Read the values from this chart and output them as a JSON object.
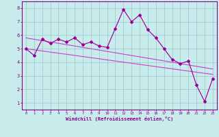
{
  "x": [
    0,
    1,
    2,
    3,
    4,
    5,
    6,
    7,
    8,
    9,
    10,
    11,
    12,
    13,
    14,
    15,
    16,
    17,
    18,
    19,
    20,
    21,
    22,
    23
  ],
  "y_main": [
    5.0,
    4.5,
    5.7,
    5.4,
    5.7,
    5.5,
    5.8,
    5.3,
    5.5,
    5.2,
    5.1,
    6.5,
    7.9,
    7.0,
    7.5,
    6.4,
    5.8,
    5.0,
    4.2,
    3.9,
    4.1,
    2.3,
    1.1,
    2.8
  ],
  "trend1_start": 5.0,
  "trend1_end": 3.1,
  "trend2_start": 5.8,
  "trend2_end": 3.5,
  "line_color": "#990099",
  "trend_color": "#cc44cc",
  "bg_color": "#c8ecec",
  "grid_color": "#a0cccc",
  "xlabel": "Windchill (Refroidissement éolien,°C)",
  "xlim": [
    -0.5,
    23.5
  ],
  "ylim": [
    0.5,
    8.5
  ],
  "xtick_labels": [
    "0",
    "1",
    "2",
    "3",
    "4",
    "5",
    "6",
    "7",
    "8",
    "9",
    "10",
    "11",
    "12",
    "13",
    "14",
    "15",
    "16",
    "17",
    "18",
    "19",
    "20",
    "21",
    "22",
    "23"
  ],
  "ytick_values": [
    1,
    2,
    3,
    4,
    5,
    6,
    7,
    8
  ],
  "axis_color": "#880088",
  "tick_color": "#880088",
  "xlabel_color": "#880088"
}
